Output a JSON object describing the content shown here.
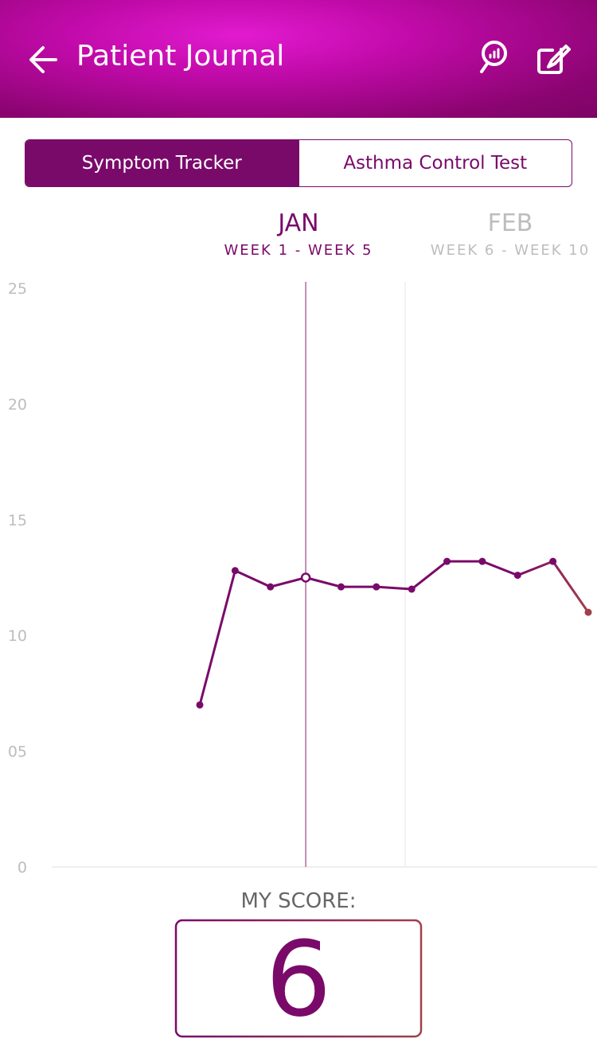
{
  "header": {
    "title": "Patient Journal"
  },
  "tabs": [
    "Symptom Tracker",
    "Asthma Control Test"
  ],
  "months": [
    {
      "name": "JAN",
      "weeks": "WEEK 1 - WEEK 5"
    },
    {
      "name": "FEB",
      "weeks": "WEEK 6 - WEEK 10"
    }
  ],
  "chart_data": {
    "type": "line",
    "categories": [
      null,
      null,
      null,
      null,
      null,
      null,
      null,
      null,
      null,
      null,
      null,
      null
    ],
    "values": [
      7,
      12.8,
      12.1,
      12.5,
      12.1,
      12.1,
      12,
      13.2,
      13.2,
      12.6,
      13.2,
      11
    ],
    "color": "#7a0a6a",
    "selected": 3,
    "ylim": [
      0,
      25
    ],
    "yticks": [
      0,
      {
        "value": 5,
        "label": "05"
      },
      10,
      15,
      20,
      25
    ],
    "grid": false
  },
  "score": {
    "label": "MY SCORE:",
    "value": 6
  }
}
